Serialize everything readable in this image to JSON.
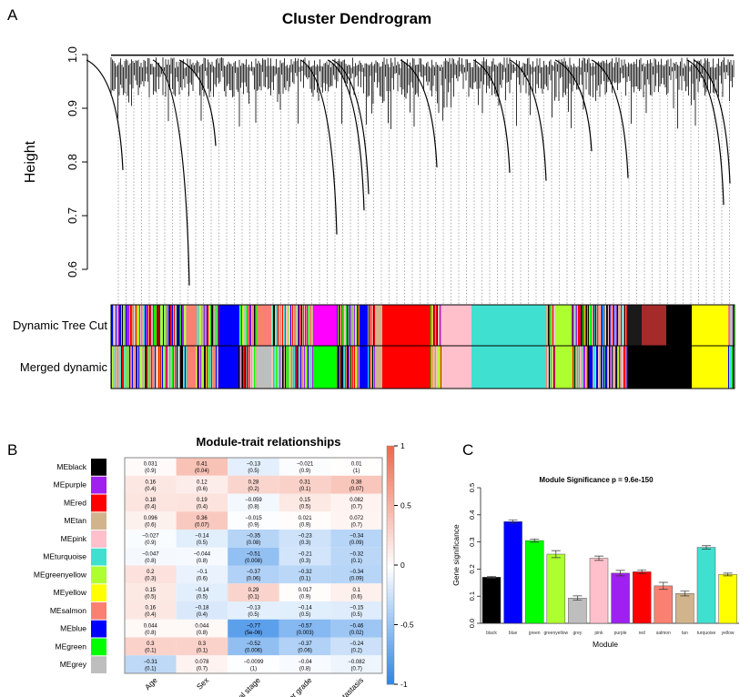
{
  "chart_data": [
    {
      "panel": "A",
      "type": "dendrogram",
      "title": "Cluster Dendrogram",
      "ylabel": "Height",
      "ylim": [
        0.55,
        1.0
      ],
      "yticks": [
        0.6,
        0.7,
        0.8,
        0.9,
        1.0
      ],
      "ytick_labels": [
        "0.6",
        "0.7",
        "0.8",
        "0.9",
        "1.0"
      ],
      "color_rows": [
        "Dynamic Tree Cut",
        "Merged dynamic"
      ]
    },
    {
      "panel": "B",
      "type": "heatmap",
      "title": "Module-trait relationships",
      "rows": [
        "MEblack",
        "MEpurple",
        "MEred",
        "MEtan",
        "MEpink",
        "MEturquoise",
        "MEgreenyellow",
        "MEyellow",
        "MEsalmon",
        "MEblue",
        "MEgreen",
        "MEgrey"
      ],
      "row_colors": [
        "#000000",
        "#A020F0",
        "#FF0000",
        "#D2B48C",
        "#FFC0CB",
        "#40E0D0",
        "#ADFF2F",
        "#FFFF00",
        "#FA8072",
        "#0000FF",
        "#00FF00",
        "#BEBEBE"
      ],
      "columns": [
        "Age",
        "Sex",
        "Pathological stage",
        "Tumor grade",
        "Metastasis"
      ],
      "values": [
        [
          0.031,
          0.41,
          -0.13,
          -0.021,
          0.01
        ],
        [
          0.16,
          0.12,
          0.28,
          0.31,
          0.38
        ],
        [
          0.18,
          0.19,
          -0.059,
          0.15,
          0.082
        ],
        [
          0.096,
          0.36,
          -0.015,
          0.021,
          0.072
        ],
        [
          -0.027,
          -0.14,
          -0.35,
          -0.23,
          -0.34
        ],
        [
          -0.047,
          -0.044,
          -0.51,
          -0.21,
          -0.32
        ],
        [
          0.2,
          -0.1,
          -0.37,
          -0.32,
          -0.34
        ],
        [
          0.15,
          -0.14,
          0.29,
          0.017,
          0.1
        ],
        [
          0.16,
          -0.18,
          -0.13,
          -0.14,
          -0.15
        ],
        [
          0.044,
          0.044,
          -0.77,
          -0.57,
          -0.46
        ],
        [
          0.3,
          0.3,
          -0.52,
          -0.37,
          -0.24
        ],
        [
          -0.31,
          0.078,
          -0.0099,
          -0.04,
          -0.082
        ]
      ],
      "pvalues": [
        [
          "(0.9)",
          "(0.04)",
          "(0.5)",
          "(0.9)",
          "(1)"
        ],
        [
          "(0.4)",
          "(0.6)",
          "(0.2)",
          "(0.1)",
          "(0.07)"
        ],
        [
          "(0.4)",
          "(0.4)",
          "(0.8)",
          "(0.5)",
          "(0.7)"
        ],
        [
          "(0.6)",
          "(0.07)",
          "(0.9)",
          "(0.9)",
          "(0.7)"
        ],
        [
          "(0.9)",
          "(0.5)",
          "(0.08)",
          "(0.3)",
          "(0.09)"
        ],
        [
          "(0.8)",
          "(0.8)",
          "(0.008)",
          "(0.3)",
          "(0.1)"
        ],
        [
          "(0.3)",
          "(0.6)",
          "(0.06)",
          "(0.1)",
          "(0.09)"
        ],
        [
          "(0.5)",
          "(0.5)",
          "(0.1)",
          "(0.9)",
          "(0.6)"
        ],
        [
          "(0.4)",
          "(0.4)",
          "(0.5)",
          "(0.5)",
          "(0.5)"
        ],
        [
          "(0.8)",
          "(0.8)",
          "(5e-06)",
          "(0.003)",
          "(0.02)"
        ],
        [
          "(0.1)",
          "(0.1)",
          "(0.006)",
          "(0.06)",
          "(0.2)"
        ],
        [
          "(0.1)",
          "(0.7)",
          "(1)",
          "(0.8)",
          "(0.7)"
        ]
      ],
      "colorbar_ticks": [
        "1",
        "0.5",
        "0",
        "-0.5",
        "-1"
      ],
      "colorbar_range": [
        -1,
        1
      ],
      "low_color": "#2B83E6",
      "mid_color": "#FFFFFF",
      "high_color": "#EE6A4E"
    },
    {
      "panel": "C",
      "type": "bar",
      "title": "Module Significance  p = 9.6e-150",
      "xlabel": "Module",
      "ylabel": "Gene significance",
      "ylim": [
        0,
        0.5
      ],
      "yticks": [
        "0.0",
        "0.1",
        "0.2",
        "0.3",
        "0.4",
        "0.5"
      ],
      "categories": [
        "black",
        "blue",
        "green",
        "greenyellow",
        "grey",
        "pink",
        "purple",
        "red",
        "salmon",
        "tan",
        "turquoise",
        "yellow"
      ],
      "colors": [
        "#000000",
        "#0000FF",
        "#00FF00",
        "#ADFF2F",
        "#BEBEBE",
        "#FFC0CB",
        "#A020F0",
        "#FF0000",
        "#FA8072",
        "#D2B48C",
        "#40E0D0",
        "#FFFF00"
      ],
      "values": [
        0.17,
        0.375,
        0.305,
        0.255,
        0.093,
        0.24,
        0.185,
        0.19,
        0.138,
        0.11,
        0.28,
        0.18
      ],
      "errors": [
        0.003,
        0.006,
        0.006,
        0.013,
        0.008,
        0.008,
        0.01,
        0.007,
        0.013,
        0.009,
        0.006,
        0.005
      ]
    }
  ],
  "panel_labels": [
    "A",
    "B",
    "C"
  ]
}
